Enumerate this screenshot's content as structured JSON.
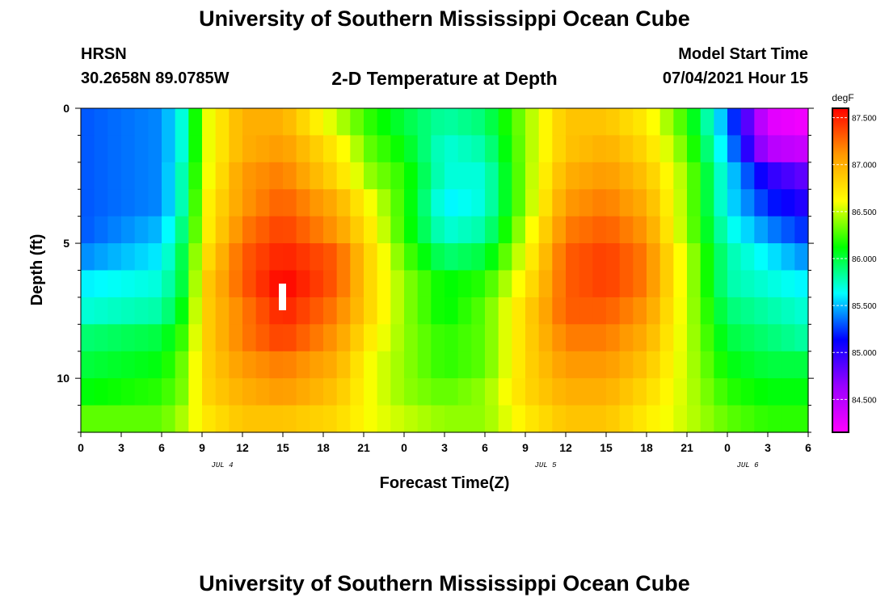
{
  "header": {
    "title": "University of Southern Mississippi Ocean Cube",
    "station": "HRSN",
    "coordinates": "30.2658N  89.0785W",
    "subtitle": "2-D Temperature at Depth",
    "model_start_label": "Model Start Time",
    "model_start_value": "07/04/2021 Hour 15"
  },
  "footer": {
    "title": "University of Southern Mississippi Ocean Cube"
  },
  "chart_data": {
    "type": "heatmap",
    "xlabel": "Forecast Time(Z)",
    "ylabel": "Depth (ft)",
    "x_tick_labels": [
      "0",
      "3",
      "6",
      "9",
      "12",
      "15",
      "18",
      "21",
      "0",
      "3",
      "6",
      "9",
      "12",
      "15",
      "18",
      "21",
      "0",
      "3",
      "6"
    ],
    "date_labels": [
      {
        "label": "JUL 4",
        "tick_index": 3.5
      },
      {
        "label": "JUL 5",
        "tick_index": 11.5
      },
      {
        "label": "JUL 6",
        "tick_index": 16.5
      }
    ],
    "x_range_hours": [
      0,
      54
    ],
    "y_ticks": [
      0,
      5,
      10
    ],
    "y_range": [
      0,
      12
    ],
    "colorbar": {
      "unit": "degF",
      "range": [
        84.15,
        87.6
      ],
      "ticks": [
        "84.500",
        "85.000",
        "85.500",
        "86.000",
        "86.500",
        "87.000",
        "87.500"
      ],
      "colors": [
        "#ff00ff",
        "#9900ff",
        "#0000ff",
        "#00ffff",
        "#00ff00",
        "#ffff00",
        "#ff9900",
        "#ff0000"
      ]
    },
    "depths_ft": [
      0.5,
      1.5,
      2.5,
      3.5,
      4.5,
      5.5,
      6.5,
      7.5,
      8.5,
      9.5,
      10.5,
      11.5
    ],
    "times_h": [
      0,
      6,
      8,
      9,
      12,
      15,
      19,
      21.5,
      24,
      27,
      30,
      33,
      36,
      39,
      42,
      45,
      48,
      51,
      54
    ],
    "values": [
      [
        85.3,
        85.4,
        85.8,
        86.5,
        87.0,
        87.0,
        86.5,
        86.2,
        86.0,
        85.8,
        85.9,
        86.4,
        86.9,
        86.9,
        86.7,
        86.2,
        85.4,
        84.3,
        84.2
      ],
      [
        85.3,
        85.4,
        85.8,
        86.5,
        87.0,
        87.1,
        86.7,
        86.3,
        86.1,
        85.7,
        85.8,
        86.4,
        86.9,
        87.0,
        86.8,
        86.3,
        85.5,
        84.5,
        84.4
      ],
      [
        85.3,
        85.4,
        85.9,
        86.5,
        87.1,
        87.2,
        86.8,
        86.4,
        86.2,
        85.7,
        85.7,
        86.4,
        87.0,
        87.1,
        86.9,
        86.4,
        85.6,
        85.0,
        84.8
      ],
      [
        85.3,
        85.4,
        85.9,
        86.6,
        87.1,
        87.3,
        87.0,
        86.6,
        86.2,
        85.6,
        85.7,
        86.4,
        87.1,
        87.2,
        87.0,
        86.4,
        85.6,
        85.2,
        85.0
      ],
      [
        85.3,
        85.5,
        86.0,
        86.6,
        87.2,
        87.4,
        87.1,
        86.7,
        86.2,
        85.7,
        85.8,
        86.5,
        87.2,
        87.3,
        87.1,
        86.4,
        85.7,
        85.4,
        85.2
      ],
      [
        85.4,
        85.6,
        86.1,
        86.7,
        87.3,
        87.5,
        87.3,
        86.8,
        86.3,
        85.9,
        86.0,
        86.6,
        87.3,
        87.4,
        87.2,
        86.5,
        85.8,
        85.6,
        85.4
      ],
      [
        85.6,
        85.7,
        86.1,
        86.8,
        87.3,
        87.6,
        87.3,
        86.8,
        86.4,
        86.1,
        86.2,
        86.7,
        87.3,
        87.4,
        87.2,
        86.5,
        85.8,
        85.7,
        85.6
      ],
      [
        85.7,
        85.8,
        86.2,
        86.8,
        87.2,
        87.5,
        87.2,
        86.8,
        86.4,
        86.1,
        86.3,
        86.8,
        87.3,
        87.3,
        87.1,
        86.5,
        85.9,
        85.8,
        85.7
      ],
      [
        85.9,
        86.0,
        86.3,
        86.8,
        87.2,
        87.4,
        87.1,
        86.7,
        86.4,
        86.2,
        86.3,
        86.8,
        87.2,
        87.2,
        87.0,
        86.5,
        86.0,
        85.9,
        85.8
      ],
      [
        86.0,
        86.1,
        86.4,
        86.8,
        87.1,
        87.2,
        87.0,
        86.6,
        86.4,
        86.2,
        86.3,
        86.8,
        87.1,
        87.1,
        86.9,
        86.5,
        86.1,
        86.0,
        86.0
      ],
      [
        86.1,
        86.2,
        86.4,
        86.8,
        87.0,
        87.1,
        86.9,
        86.6,
        86.4,
        86.3,
        86.4,
        86.8,
        87.0,
        87.0,
        86.8,
        86.5,
        86.2,
        86.1,
        86.1
      ],
      [
        86.3,
        86.3,
        86.5,
        86.7,
        86.9,
        86.9,
        86.8,
        86.6,
        86.5,
        86.4,
        86.4,
        86.7,
        86.9,
        86.9,
        86.7,
        86.5,
        86.3,
        86.2,
        86.2
      ]
    ]
  }
}
